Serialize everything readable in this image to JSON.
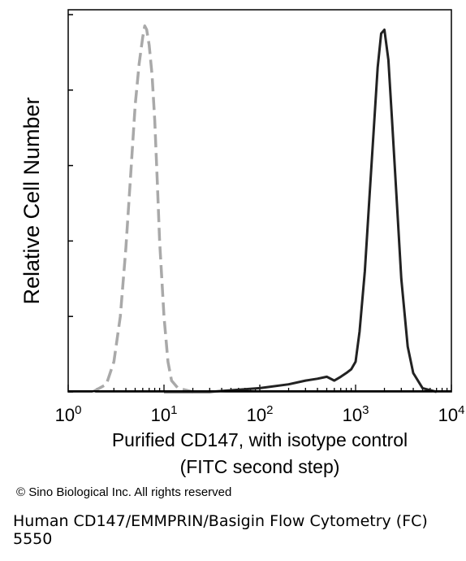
{
  "chart_data": {
    "type": "line",
    "title": "",
    "ylabel": "Relative Cell Number",
    "xlabel_lines": [
      "Purified CD147, with isotype control",
      "(FITC second step)"
    ],
    "x_scale": "log",
    "xlim": [
      1,
      10000
    ],
    "ylim": [
      0,
      1
    ],
    "x_ticks": [
      {
        "base": "10",
        "exp": "0"
      },
      {
        "base": "10",
        "exp": "1"
      },
      {
        "base": "10",
        "exp": "2"
      },
      {
        "base": "10",
        "exp": "3"
      },
      {
        "base": "10",
        "exp": "4"
      }
    ],
    "y_ticks": [
      0,
      0.2,
      0.4,
      0.6,
      0.8,
      1.0
    ],
    "grid": false,
    "legend": "none",
    "series": [
      {
        "style": "dashed",
        "color": "#a9a9a9",
        "x": [
          1.8,
          2.5,
          3.0,
          3.5,
          4.0,
          4.5,
          5.0,
          5.5,
          6.0,
          6.3,
          6.6,
          7.0,
          7.5,
          8.0,
          8.5,
          9.0,
          10.0,
          11.0,
          12.0,
          14.0,
          20.0
        ],
        "y": [
          0.0,
          0.02,
          0.08,
          0.2,
          0.38,
          0.58,
          0.76,
          0.87,
          0.94,
          0.97,
          0.96,
          0.92,
          0.84,
          0.72,
          0.56,
          0.4,
          0.2,
          0.08,
          0.03,
          0.01,
          0.0
        ]
      },
      {
        "style": "solid",
        "color": "#222222",
        "x": [
          10.0,
          30.0,
          100.0,
          200.0,
          300.0,
          400.0,
          500.0,
          600.0,
          700.0,
          800.0,
          900.0,
          1000.0,
          1100.0,
          1250.0,
          1400.0,
          1550.0,
          1700.0,
          1850.0,
          2000.0,
          2200.0,
          2400.0,
          2700.0,
          3000.0,
          3500.0,
          4000.0,
          5000.0,
          7000.0
        ],
        "y": [
          0.0,
          0.0,
          0.01,
          0.02,
          0.03,
          0.035,
          0.04,
          0.03,
          0.04,
          0.05,
          0.06,
          0.08,
          0.16,
          0.32,
          0.52,
          0.7,
          0.86,
          0.95,
          0.96,
          0.88,
          0.72,
          0.5,
          0.3,
          0.12,
          0.05,
          0.01,
          0.0
        ]
      }
    ]
  },
  "copyright": "© Sino Biological Inc. All rights reserved",
  "caption": {
    "line1": "Human CD147/EMMPRIN/Basigin Flow Cytometry (FC)",
    "line2": "5550"
  }
}
